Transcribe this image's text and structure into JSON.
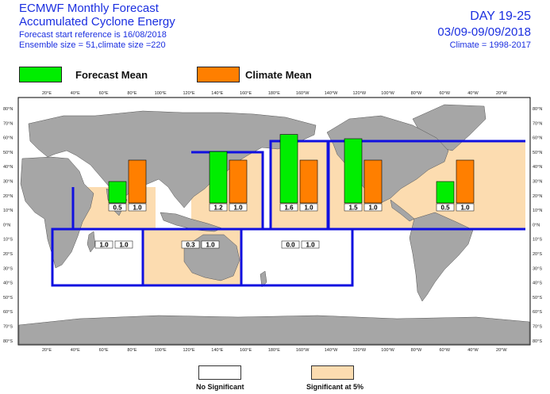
{
  "header": {
    "title_line1": "ECMWF Monthly Forecast",
    "title_line2": "Accumulated Cyclone Energy",
    "forecast_ref": "Forecast start reference is 16/08/2018",
    "ensemble": "Ensemble size = 51,climate size =220",
    "day_range": "DAY 19-25",
    "date_range": "03/09-09/09/2018",
    "climate": "Climate = 1998-2017"
  },
  "legend": {
    "forecast_label": "Forecast Mean",
    "forecast_color": "#00ee00",
    "climate_label": "Climate Mean",
    "climate_color": "#ff7f00"
  },
  "footer": {
    "no_sig_label": "No Significant",
    "sig_label": "Significant at 5%",
    "sig_color": "#fcdcb0"
  },
  "map": {
    "top_axis_labels": [
      "20°E",
      "40°E",
      "60°E",
      "80°E",
      "100°E",
      "120°E",
      "140°E",
      "160°E",
      "180°E",
      "160°W",
      "140°W",
      "120°W",
      "100°W",
      "80°W",
      "60°W",
      "40°W",
      "20°W"
    ],
    "bottom_axis_labels": [
      "20°E",
      "40°E",
      "60°E",
      "80°E",
      "100°E",
      "120°E",
      "140°E",
      "160°E",
      "180°E",
      "160°W",
      "140°W",
      "120°W",
      "100°W",
      "80°W",
      "60°W",
      "40°W",
      "20°W"
    ],
    "lat_labels": [
      "80°N",
      "70°N",
      "60°N",
      "50°N",
      "40°N",
      "30°N",
      "20°N",
      "10°N",
      "0°N",
      "10°S",
      "20°S",
      "30°S",
      "40°S",
      "50°S",
      "60°S",
      "70°S",
      "80°S"
    ],
    "ocean_color": "#ffffff",
    "land_color": "#a6a6a6",
    "box_color": "#1010e0"
  },
  "chart_data": {
    "type": "bar",
    "title": "Accumulated Cyclone Energy",
    "series_names": [
      "Forecast Mean",
      "Climate Mean"
    ],
    "basins": [
      {
        "forecast": 0.5,
        "climate": 1.0,
        "forecast_label": "0.5",
        "climate_label": "1.0",
        "significant": true
      },
      {
        "forecast": 1.2,
        "climate": 1.0,
        "forecast_label": "1.2",
        "climate_label": "1.0",
        "significant": true
      },
      {
        "forecast": 1.6,
        "climate": 1.0,
        "forecast_label": "1.6",
        "climate_label": "1.0",
        "significant": true
      },
      {
        "forecast": 1.5,
        "climate": 1.0,
        "forecast_label": "1.5",
        "climate_label": "1.0",
        "significant": true
      },
      {
        "forecast": 0.5,
        "climate": 1.0,
        "forecast_label": "0.5",
        "climate_label": "1.0",
        "significant": true
      },
      {
        "forecast": 1.0,
        "climate": 1.0,
        "forecast_label": "1.0",
        "climate_label": "1.0",
        "significant": false
      },
      {
        "forecast": 0.3,
        "climate": 1.0,
        "forecast_label": "0.3",
        "climate_label": "1.0",
        "significant": true
      },
      {
        "forecast": 0.0,
        "climate": 1.0,
        "forecast_label": "0.0",
        "climate_label": "1.0",
        "significant": false
      }
    ]
  }
}
